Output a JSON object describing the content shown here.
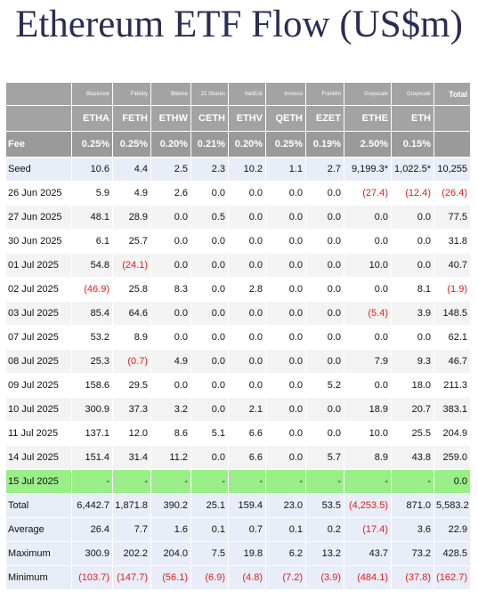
{
  "title": "Ethereum ETF Flow (US$m)",
  "table": {
    "providers": [
      "Blackrock",
      "Fidelity",
      "Bitwise",
      "21 Shares",
      "VanEck",
      "Invesco",
      "Franklin",
      "Grayscale",
      "Grayscale",
      "Total"
    ],
    "tickers": [
      "ETHA",
      "FETH",
      "ETHW",
      "CETH",
      "ETHV",
      "QETH",
      "EZET",
      "ETHE",
      "ETH"
    ],
    "fee": {
      "label": "Fee",
      "values": [
        "0.25%",
        "0.25%",
        "0.20%",
        "0.21%",
        "0.20%",
        "0.25%",
        "0.19%",
        "2.50%",
        "0.15%"
      ]
    },
    "rows": [
      {
        "label": "Seed",
        "cells": [
          "10.6",
          "4.4",
          "2.5",
          "2.3",
          "10.2",
          "1.1",
          "2.7",
          "9,199.3*",
          "1,022.5*",
          "10,255"
        ]
      },
      {
        "label": "26 Jun 2025",
        "cells": [
          "5.9",
          "4.9",
          "2.6",
          "0.0",
          "0.0",
          "0.0",
          "0.0",
          "(27.4)",
          "(12.4)",
          "(26.4)"
        ]
      },
      {
        "label": "27 Jun 2025",
        "cells": [
          "48.1",
          "28.9",
          "0.0",
          "0.5",
          "0.0",
          "0.0",
          "0.0",
          "0.0",
          "0.0",
          "77.5"
        ]
      },
      {
        "label": "30 Jun 2025",
        "cells": [
          "6.1",
          "25.7",
          "0.0",
          "0.0",
          "0.0",
          "0.0",
          "0.0",
          "0.0",
          "0.0",
          "31.8"
        ]
      },
      {
        "label": "01 Jul 2025",
        "cells": [
          "54.8",
          "(24.1)",
          "0.0",
          "0.0",
          "0.0",
          "0.0",
          "0.0",
          "10.0",
          "0.0",
          "40.7"
        ]
      },
      {
        "label": "02 Jul 2025",
        "cells": [
          "(46.9)",
          "25.8",
          "8.3",
          "0.0",
          "2.8",
          "0.0",
          "0.0",
          "0.0",
          "8.1",
          "(1.9)"
        ]
      },
      {
        "label": "03 Jul 2025",
        "cells": [
          "85.4",
          "64.6",
          "0.0",
          "0.0",
          "0.0",
          "0.0",
          "0.0",
          "(5.4)",
          "3.9",
          "148.5"
        ]
      },
      {
        "label": "07 Jul 2025",
        "cells": [
          "53.2",
          "8.9",
          "0.0",
          "0.0",
          "0.0",
          "0.0",
          "0.0",
          "0.0",
          "0.0",
          "62.1"
        ]
      },
      {
        "label": "08 Jul 2025",
        "cells": [
          "25.3",
          "(0.7)",
          "4.9",
          "0.0",
          "0.0",
          "0.0",
          "0.0",
          "7.9",
          "9.3",
          "46.7"
        ]
      },
      {
        "label": "09 Jul 2025",
        "cells": [
          "158.6",
          "29.5",
          "0.0",
          "0.0",
          "0.0",
          "0.0",
          "5.2",
          "0.0",
          "18.0",
          "211.3"
        ]
      },
      {
        "label": "10 Jul 2025",
        "cells": [
          "300.9",
          "37.3",
          "3.2",
          "0.0",
          "2.1",
          "0.0",
          "0.0",
          "18.9",
          "20.7",
          "383.1"
        ]
      },
      {
        "label": "11 Jul 2025",
        "cells": [
          "137.1",
          "12.0",
          "8.6",
          "5.1",
          "6.6",
          "0.0",
          "0.0",
          "10.0",
          "25.5",
          "204.9"
        ]
      },
      {
        "label": "14 Jul 2025",
        "cells": [
          "151.4",
          "31.4",
          "11.2",
          "0.0",
          "6.6",
          "0.0",
          "5.7",
          "8.9",
          "43.8",
          "259.0"
        ]
      },
      {
        "label": "15 Jul 2025",
        "highlight": true,
        "cells": [
          "-",
          "-",
          "-",
          "-",
          "-",
          "-",
          "-",
          "-",
          "-",
          "0.0"
        ]
      }
    ],
    "summary": [
      {
        "label": "Total",
        "cells": [
          "6,442.7",
          "1,871.8",
          "390.2",
          "25.1",
          "159.4",
          "23.0",
          "53.5",
          "(4,253.5)",
          "871.0",
          "5,583.2"
        ]
      },
      {
        "label": "Average",
        "cells": [
          "26.4",
          "7.7",
          "1.6",
          "0.1",
          "0.7",
          "0.1",
          "0.2",
          "(17.4)",
          "3.6",
          "22.9"
        ]
      },
      {
        "label": "Maximum",
        "cells": [
          "300.9",
          "202.2",
          "204.0",
          "7.5",
          "19.8",
          "6.2",
          "13.2",
          "43.7",
          "73.2",
          "428.5"
        ]
      },
      {
        "label": "Minimum",
        "cells": [
          "(103.7)",
          "(147.7)",
          "(56.1)",
          "(6.9)",
          "(4.8)",
          "(7.2)",
          "(3.9)",
          "(484.1)",
          "(37.8)",
          "(162.7)"
        ]
      }
    ]
  }
}
